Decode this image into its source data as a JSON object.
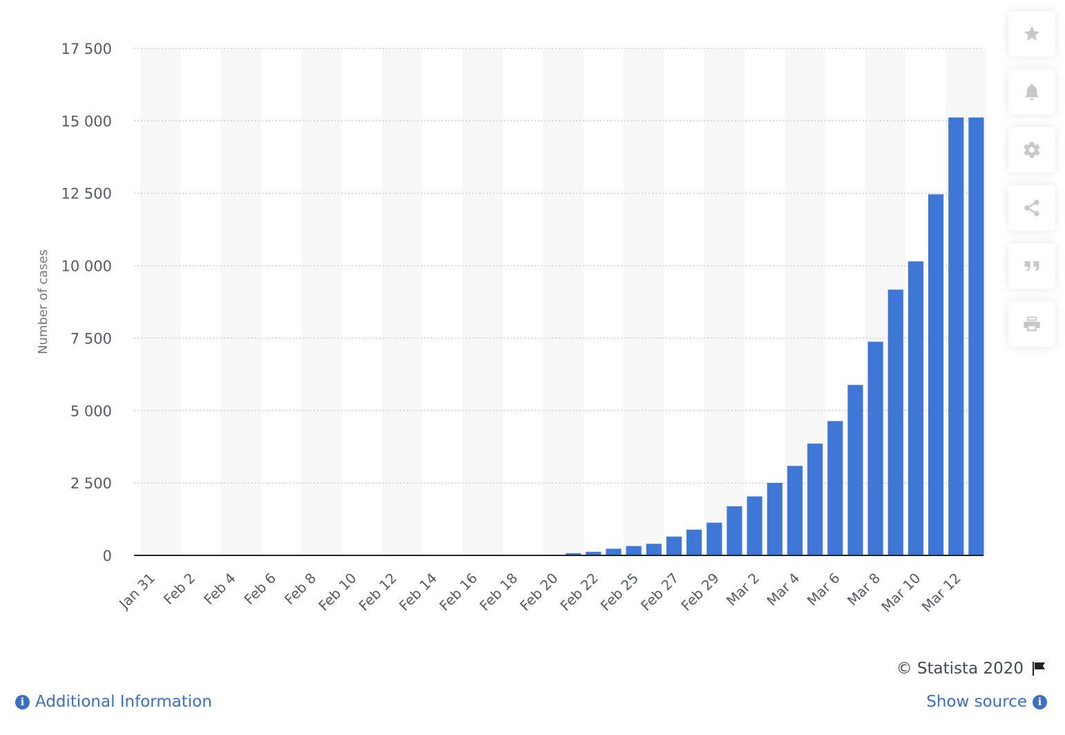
{
  "chart_data": {
    "type": "bar",
    "ylabel": "Number of cases",
    "ylim": [
      0,
      17500
    ],
    "yticks": [
      0,
      2500,
      5000,
      7500,
      10000,
      12500,
      15000,
      17500
    ],
    "ytick_labels": [
      "0",
      "2 500",
      "5 000",
      "7 500",
      "10 000",
      "12 500",
      "15 000",
      "17 500"
    ],
    "grid": "horizontal-dotted",
    "bar_color": "#3f77d6",
    "band_color": "#f7f7f7",
    "categories": [
      "Jan 31",
      "Feb 1",
      "Feb 2",
      "Feb 3",
      "Feb 4",
      "Feb 5",
      "Feb 6",
      "Feb 7",
      "Feb 8",
      "Feb 9",
      "Feb 10",
      "Feb 11",
      "Feb 12",
      "Feb 13",
      "Feb 14",
      "Feb 15",
      "Feb 16",
      "Feb 17",
      "Feb 18",
      "Feb 19",
      "Feb 20",
      "Feb 21",
      "Feb 22",
      "Feb 24",
      "Feb 25",
      "Feb 26",
      "Feb 27",
      "Feb 28",
      "Feb 29",
      "Mar 1",
      "Mar 2",
      "Mar 3",
      "Mar 4",
      "Mar 5",
      "Mar 6",
      "Mar 7",
      "Mar 8",
      "Mar 9",
      "Mar 10",
      "Mar 11",
      "Mar 12",
      "Mar 13"
    ],
    "x_tick_labels": [
      "Jan 31",
      "Feb 2",
      "Feb 4",
      "Feb 6",
      "Feb 8",
      "Feb 10",
      "Feb 12",
      "Feb 14",
      "Feb 16",
      "Feb 18",
      "Feb 20",
      "Feb 22",
      "Feb 25",
      "Feb 27",
      "Feb 29",
      "Mar 2",
      "Mar 4",
      "Mar 6",
      "Mar 8",
      "Mar 10",
      "Mar 12"
    ],
    "values": [
      2,
      2,
      2,
      2,
      2,
      2,
      2,
      3,
      3,
      3,
      3,
      3,
      3,
      3,
      3,
      3,
      3,
      3,
      3,
      3,
      3,
      76,
      124,
      229,
      322,
      400,
      650,
      888,
      1128,
      1694,
      2036,
      2502,
      3089,
      3858,
      4636,
      5883,
      7375,
      9172,
      10149,
      12462,
      15113,
      15113
    ]
  },
  "toolbar": {
    "icons": [
      "star-icon",
      "bell-icon",
      "gear-icon",
      "share-icon",
      "quote-icon",
      "print-icon"
    ]
  },
  "footer": {
    "copyright": "© Statista 2020",
    "additional_info": "Additional Information",
    "show_source": "Show source"
  }
}
